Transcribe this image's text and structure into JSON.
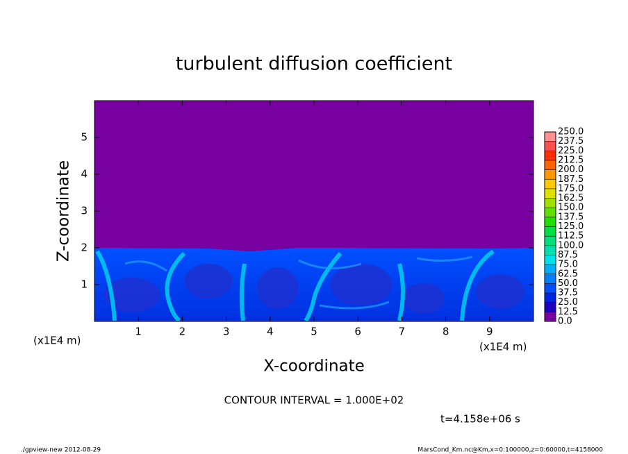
{
  "chart_data": {
    "type": "contour",
    "title": "turbulent diffusion coefficient",
    "x_label": "X-coordinate",
    "y_label": "Z-coordinate",
    "x_unit": "(x1E4 m)",
    "y_unit": "(x1E4 m)",
    "xlim": [
      0,
      10
    ],
    "xticks": [
      1,
      2,
      3,
      4,
      5,
      6,
      7,
      8,
      9
    ],
    "ylim": [
      0,
      6
    ],
    "yticks": [
      1,
      2,
      3,
      4,
      5
    ],
    "levels": [
      {
        "value": 0,
        "label": "0.0"
      },
      {
        "value": 12.5,
        "label": "12.5"
      },
      {
        "value": 25,
        "label": "25.0"
      },
      {
        "value": 37.5,
        "label": "37.5"
      },
      {
        "value": 50,
        "label": "50.0"
      },
      {
        "value": 62.5,
        "label": "62.5"
      },
      {
        "value": 75,
        "label": "75.0"
      },
      {
        "value": 87.5,
        "label": "87.5"
      },
      {
        "value": 100,
        "label": "100.0"
      },
      {
        "value": 112.5,
        "label": "112.5"
      },
      {
        "value": 125,
        "label": "125.0"
      },
      {
        "value": 137.5,
        "label": "137.5"
      },
      {
        "value": 150,
        "label": "150.0"
      },
      {
        "value": 162.5,
        "label": "162.5"
      },
      {
        "value": 175,
        "label": "175.0"
      },
      {
        "value": 187.5,
        "label": "187.5"
      },
      {
        "value": 200,
        "label": "200.0"
      },
      {
        "value": 212.5,
        "label": "212.5"
      },
      {
        "value": 225,
        "label": "225.0"
      },
      {
        "value": 237.5,
        "label": "237.5"
      },
      {
        "value": 250,
        "label": "250.0"
      }
    ],
    "colors": [
      "#7800a0",
      "#2000c0",
      "#0024e0",
      "#0050ff",
      "#0080ff",
      "#00b0ff",
      "#00e0e8",
      "#00e0b0",
      "#00e078",
      "#00e040",
      "#20e000",
      "#60e000",
      "#a0e000",
      "#e0e000",
      "#ffc800",
      "#ff9600",
      "#ff6400",
      "#ff3000",
      "#ff5050",
      "#ff9090"
    ],
    "contour_interval": "CONTOUR INTERVAL = 1.000E+02",
    "time_label": "t=4.158e+06 s",
    "footer_left": "./gpview-new  2012-08-29",
    "footer_right": "MarsCond_Km.nc@Km,x=0:100000,z=0:60000,t=4158000"
  }
}
